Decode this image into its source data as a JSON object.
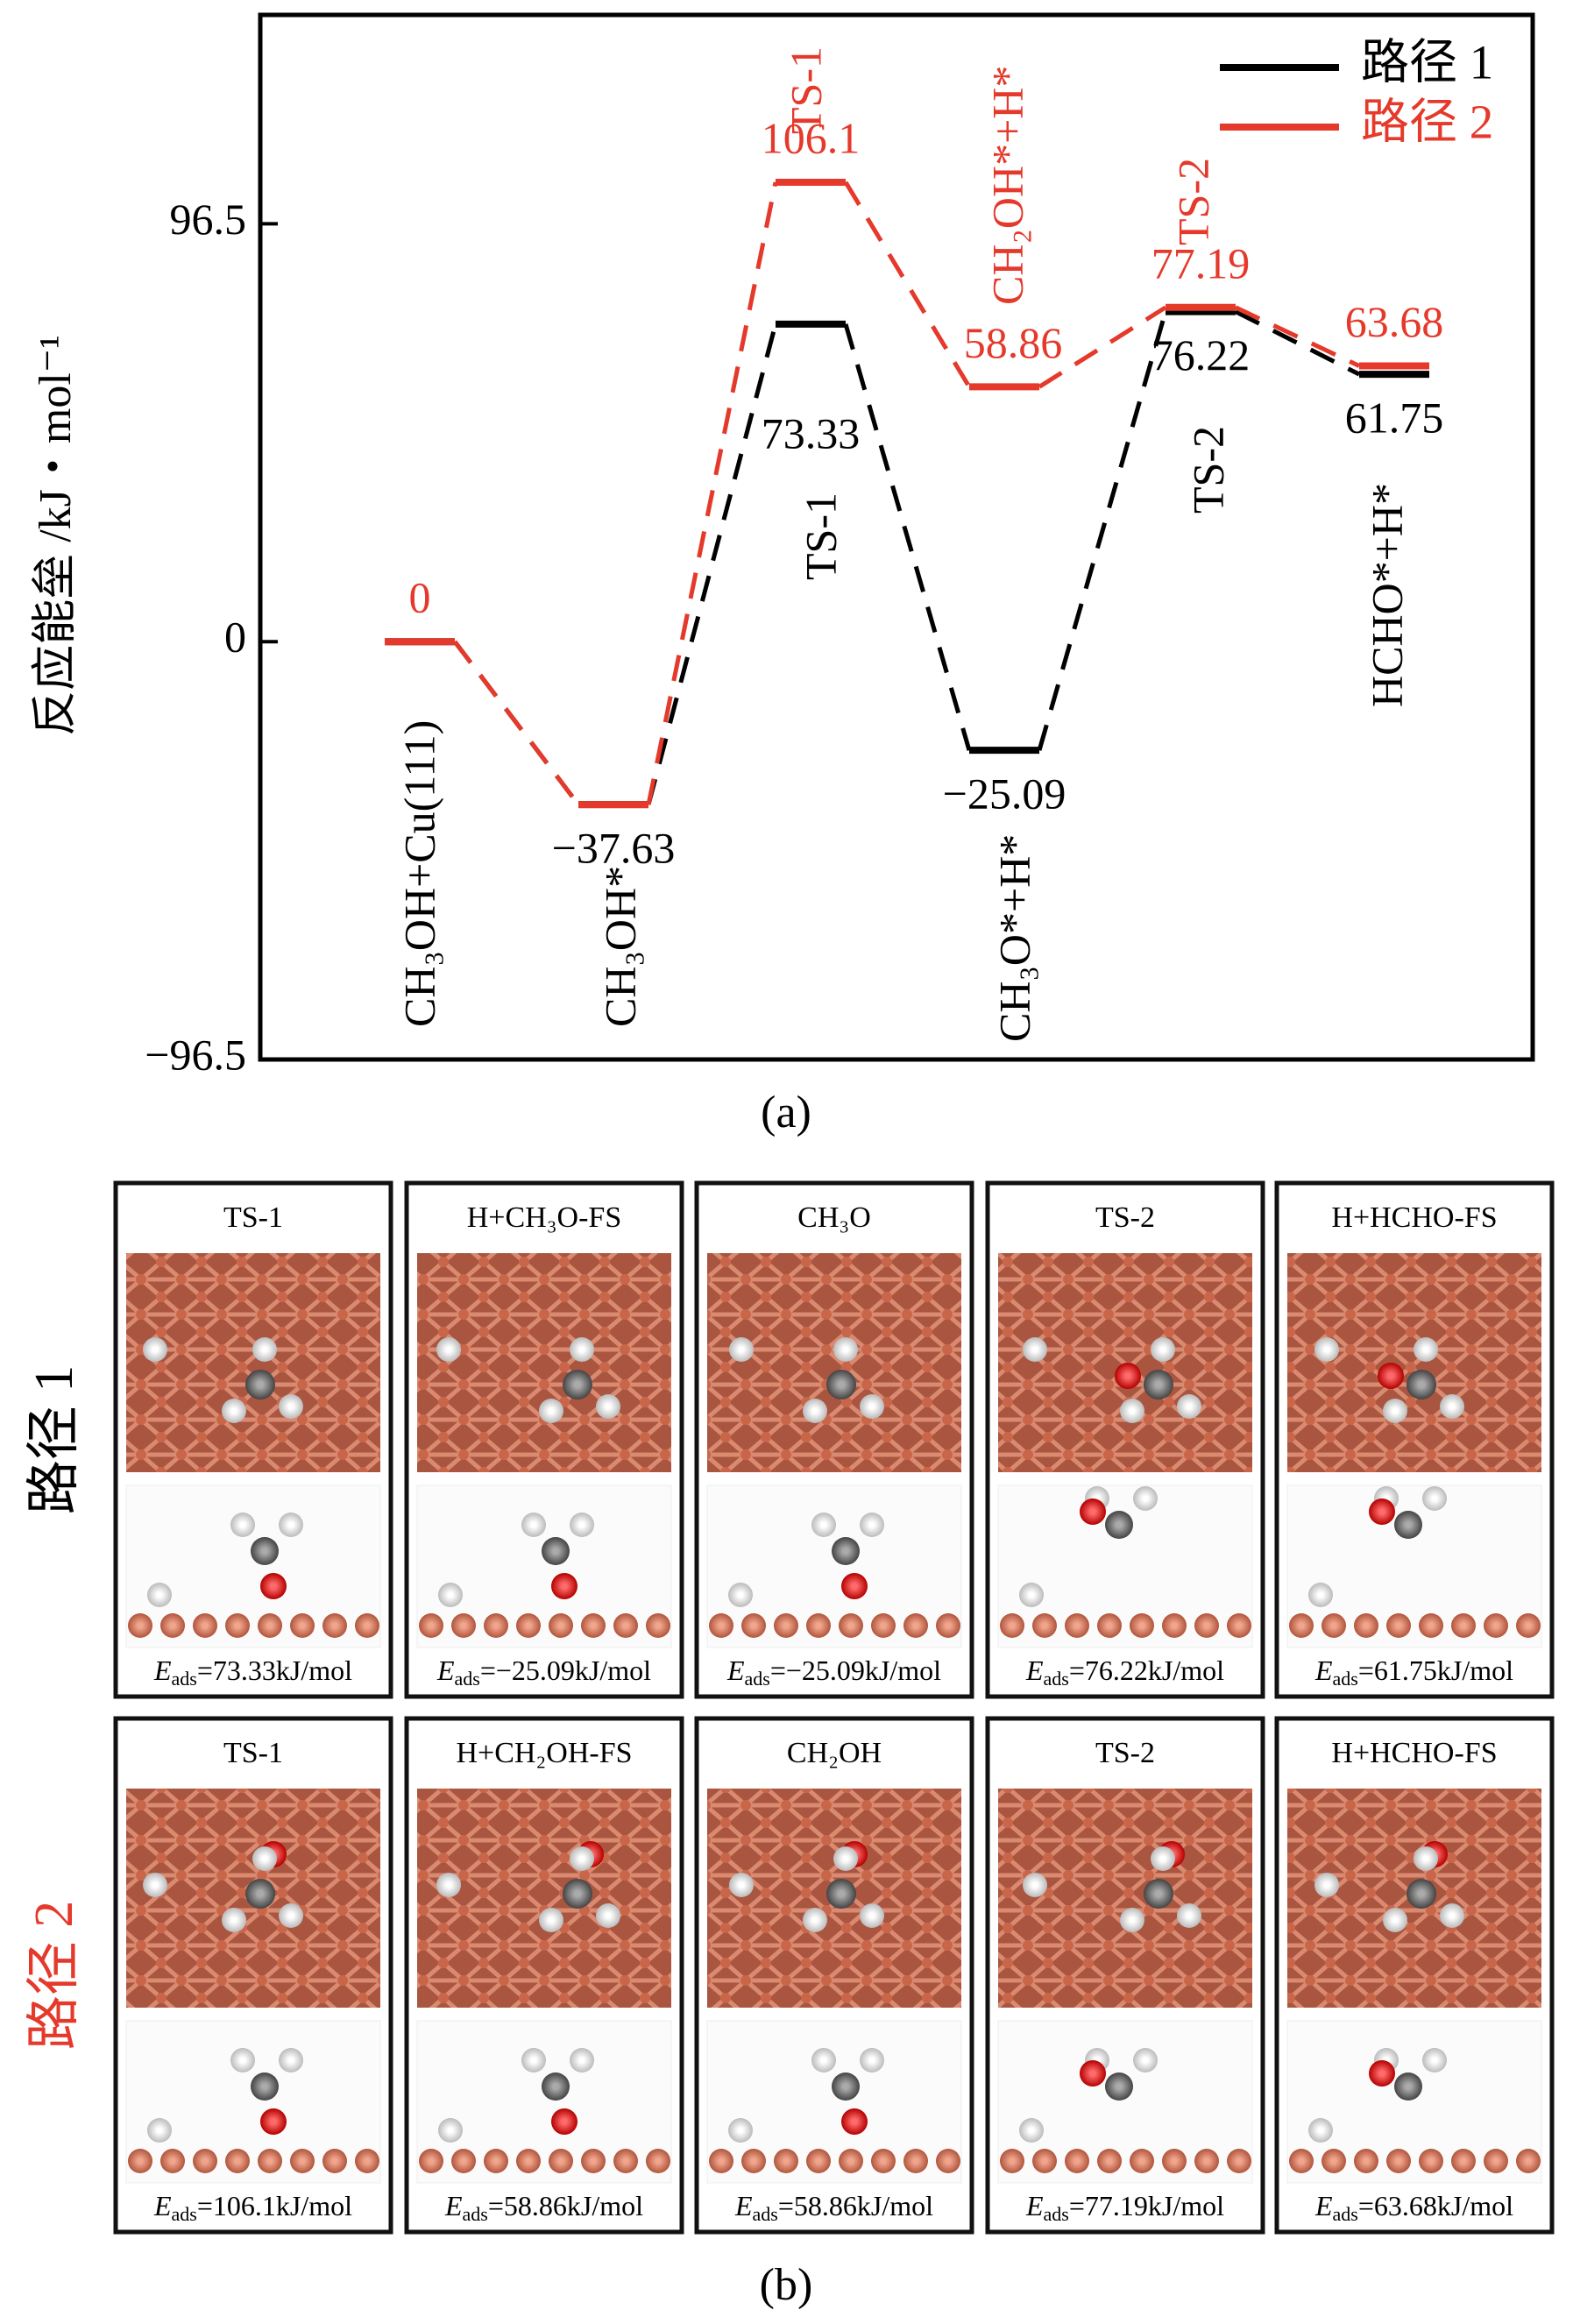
{
  "chart_data": {
    "type": "energy_profile",
    "ylabel": "反应能垒 /kJ・mol⁻¹",
    "ylim": [
      -96.5,
      144.75
    ],
    "yticks": [
      96.5,
      0,
      {
        "value": -96.5,
        "label": "−96.5"
      }
    ],
    "legend": "upper right",
    "series": [
      {
        "name": "路径 1",
        "color": "#000000",
        "values": [
          0,
          -37.63,
          73.33,
          -25.09,
          76.22,
          61.75
        ],
        "value_labels": [
          null,
          "−37.63",
          "73.33",
          "−25.09",
          "76.22",
          "61.75"
        ],
        "state_labels": [
          "CH₃OH+Cu(111)",
          "CH₃OH*",
          "TS-1",
          "CH₃O*+H*",
          "TS-2",
          "HCHO*+H*"
        ]
      },
      {
        "name": "路径 2",
        "color": "#e5392b",
        "values": [
          0,
          -37.63,
          106.1,
          58.86,
          77.19,
          63.68
        ],
        "value_labels": [
          "0",
          null,
          "106.1",
          "58.86",
          "77.19",
          "63.68"
        ],
        "state_labels": [
          null,
          null,
          "TS-1",
          "CH₂OH*+H*",
          "TS-2",
          null
        ]
      }
    ],
    "caption": "(a)"
  },
  "panel_b": {
    "caption": "(b)",
    "symbol": "E",
    "subscript": "ads",
    "rows": [
      {
        "label": "路径 1",
        "color": "#000000",
        "cells": [
          {
            "title": "TS-1",
            "energy": "=73.33kJ/mol"
          },
          {
            "title": "H+CH₃O-FS",
            "energy": "=−25.09kJ/mol"
          },
          {
            "title": "CH₃O",
            "energy": "=−25.09kJ/mol"
          },
          {
            "title": "TS-2",
            "energy": "=76.22kJ/mol"
          },
          {
            "title": "H+HCHO-FS",
            "energy": "=61.75kJ/mol"
          }
        ]
      },
      {
        "label": "路径 2",
        "color": "#e5392b",
        "cells": [
          {
            "title": "TS-1",
            "energy": "=106.1kJ/mol"
          },
          {
            "title": "H+CH₂OH-FS",
            "energy": "=58.86kJ/mol"
          },
          {
            "title": "CH₂OH",
            "energy": "=58.86kJ/mol"
          },
          {
            "title": "TS-2",
            "energy": "=77.19kJ/mol"
          },
          {
            "title": "H+HCHO-FS",
            "energy": "=63.68kJ/mol"
          }
        ]
      }
    ]
  }
}
